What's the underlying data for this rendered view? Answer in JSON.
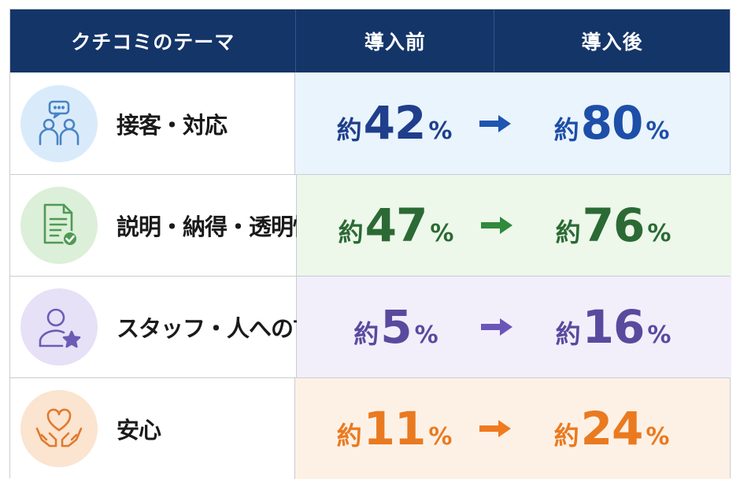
{
  "header": {
    "col1": "クチコミのテーマ",
    "col2": "導入前",
    "col3": "導入後"
  },
  "rows": [
    {
      "theme": "接客・対応",
      "icon": "people-chat-icon",
      "prefix": "約",
      "before": "42",
      "after": "80",
      "unit": "%",
      "color": "#1f3f8c",
      "after_color": "#1d4fa8",
      "arrow_color": "#1d55b0",
      "bg": "#eaf4fd",
      "icon_bg": "#d9ebfb",
      "icon_color": "#4a84c4"
    },
    {
      "theme": "説明・納得・透明性",
      "icon": "document-check-icon",
      "prefix": "約",
      "before": "47",
      "after": "76",
      "unit": "%",
      "color": "#2b6a34",
      "after_color": "#2b6a34",
      "arrow_color": "#2f8a3c",
      "bg": "#edf7ea",
      "icon_bg": "#dcefd8",
      "icon_color": "#4f9a55"
    },
    {
      "theme": "スタッフ・人への言及",
      "icon": "person-star-icon",
      "prefix": "約",
      "before": "5",
      "after": "16",
      "unit": "%",
      "color": "#5a4a9e",
      "after_color": "#5a4a9e",
      "arrow_color": "#6a56b8",
      "bg": "#f2effb",
      "icon_bg": "#e6e1f6",
      "icon_color": "#6b5cb5"
    },
    {
      "theme": "安心",
      "icon": "heart-hands-icon",
      "prefix": "約",
      "before": "11",
      "after": "24",
      "unit": "%",
      "color": "#ea7a20",
      "after_color": "#ea7a20",
      "arrow_color": "#f07a1e",
      "bg": "#fdf1e6",
      "icon_bg": "#fbe4d0",
      "icon_color": "#e07a2c"
    }
  ],
  "chart_data": {
    "type": "table",
    "columns": [
      "クチコミのテーマ",
      "導入前",
      "導入後"
    ],
    "categories": [
      "接客・対応",
      "説明・納得・透明性",
      "スタッフ・人への言及",
      "安心"
    ],
    "series": [
      {
        "name": "導入前",
        "values": [
          42,
          47,
          5,
          11
        ]
      },
      {
        "name": "導入後",
        "values": [
          80,
          76,
          16,
          24
        ]
      }
    ]
  }
}
